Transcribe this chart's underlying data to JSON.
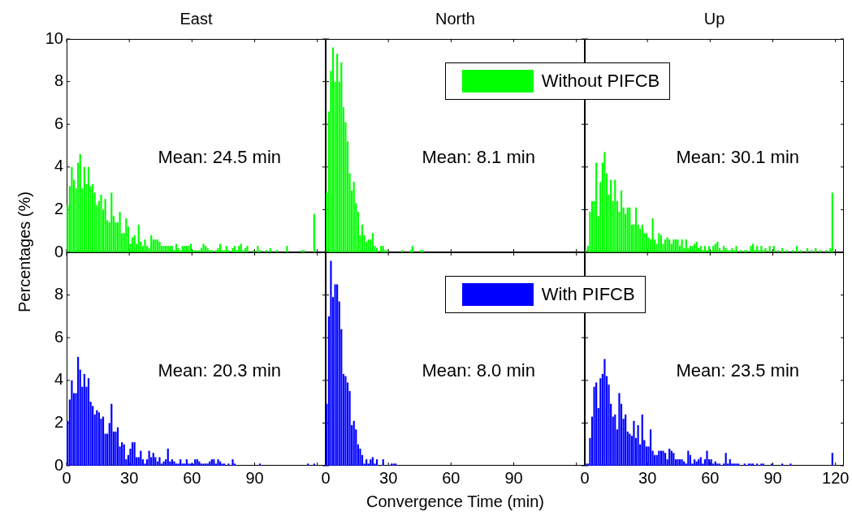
{
  "chart_data": [
    {
      "type": "histogram",
      "title": "East",
      "ylabel": "Percentages (%)",
      "color": "#00ff00",
      "bins": [
        0,
        1,
        2,
        3,
        4,
        5,
        6,
        7,
        8,
        9,
        10,
        11,
        12,
        13,
        14,
        15,
        16,
        17,
        18,
        19,
        20,
        21,
        22,
        23,
        24,
        25,
        26,
        27,
        28,
        29,
        30,
        31,
        32,
        33,
        34,
        35,
        36,
        37,
        38,
        39,
        40,
        41,
        42,
        43,
        44,
        45,
        46,
        47,
        48,
        49,
        50,
        51,
        52,
        53,
        54,
        55,
        56,
        57,
        58,
        59,
        60,
        61,
        62,
        63,
        64,
        65,
        66,
        67,
        68,
        69,
        70,
        71,
        72,
        73,
        74,
        75,
        76,
        77,
        78,
        79,
        80,
        81,
        82,
        83,
        84,
        85,
        86,
        87,
        88,
        89,
        90,
        91,
        92,
        93,
        94,
        95,
        96,
        97,
        98,
        99,
        100,
        101,
        102,
        103,
        104,
        105,
        106,
        107,
        108,
        109,
        110,
        111,
        112,
        113,
        114,
        115,
        116,
        117,
        118,
        119,
        120
      ],
      "values": [
        2.2,
        3.1,
        4.0,
        3.4,
        3.0,
        4.2,
        4.6,
        3.0,
        4.0,
        3.2,
        4.0,
        3.1,
        3.2,
        2.8,
        2.2,
        2.4,
        2.7,
        2.0,
        2.5,
        1.5,
        1.4,
        2.8,
        1.7,
        1.4,
        1.4,
        1.9,
        0.9,
        0.9,
        1.6,
        1.2,
        0.4,
        0.7,
        0.8,
        0.4,
        1.3,
        0.5,
        0.3,
        0.6,
        0.3,
        0.2,
        0.8,
        0.6,
        0.6,
        0.6,
        0.5,
        0.3,
        0.3,
        0.3,
        0.3,
        0.3,
        0.3,
        0.1,
        0.4,
        0.2,
        0.1,
        0.3,
        0.3,
        0.3,
        0.3,
        0.4,
        0.1,
        0.1,
        0.1,
        0.1,
        0.2,
        0.4,
        0.3,
        0.2,
        0.1,
        0.1,
        0,
        0.1,
        0.2,
        0.4,
        0.1,
        0.1,
        0.3,
        0.1,
        0,
        0.2,
        0.3,
        0.1,
        0.3,
        0.4,
        0.1,
        0.2,
        0.3,
        0,
        0,
        0.1,
        0,
        0.3,
        0.1,
        0,
        0,
        0.1,
        0,
        0.2,
        0,
        0,
        0.1,
        0,
        0,
        0,
        0,
        0.3,
        0,
        0,
        0,
        0,
        0,
        0,
        0.1,
        0.1,
        0,
        0,
        0,
        0,
        1.8,
        0
      ],
      "xlim": [
        0,
        124
      ],
      "xticks": [
        0,
        30,
        60,
        90,
        120
      ],
      "ylim": [
        0,
        10
      ],
      "yticks": [
        0,
        2,
        4,
        6,
        8,
        10
      ],
      "tick_labels": "y",
      "annotations": [
        "Mean: 24.5 min"
      ]
    },
    {
      "type": "histogram",
      "title": "North",
      "legend": "top right",
      "bins": [
        0,
        1,
        2,
        3,
        4,
        5,
        6,
        7,
        8,
        9,
        10,
        11,
        12,
        13,
        14,
        15,
        16,
        17,
        18,
        19,
        20,
        21,
        22,
        23,
        24,
        25,
        26,
        27,
        28,
        29,
        30,
        31,
        32,
        33,
        34,
        35,
        36,
        37,
        38,
        39,
        40,
        41,
        42,
        43,
        44,
        45,
        46,
        47,
        48,
        49,
        50,
        51,
        52,
        53,
        54,
        55,
        56,
        57,
        58,
        59,
        60,
        61,
        62,
        63,
        64,
        65,
        66,
        67,
        68,
        69,
        70,
        71,
        72,
        73,
        74,
        75,
        76,
        77,
        78,
        79,
        80,
        81,
        82,
        83,
        84,
        85,
        86,
        87,
        88,
        89,
        90,
        91,
        92,
        93,
        94,
        95,
        96,
        97,
        98,
        99,
        100,
        101,
        102,
        103,
        104,
        105,
        106,
        107,
        108,
        109,
        110,
        111,
        112,
        113,
        114,
        115,
        116,
        117,
        118,
        119,
        120
      ],
      "series": [
        {
          "name": "Without PIFCB",
          "color": "#00ff00",
          "values": [
            2.8,
            6.6,
            8.5,
            9.6,
            8.0,
            9.3,
            8.0,
            8.9,
            6.8,
            6.1,
            5.2,
            3.7,
            2.9,
            3.3,
            2.3,
            1.9,
            0.8,
            1.3,
            0.8,
            0.5,
            0.6,
            0.6,
            0.9,
            0.3,
            0.2,
            0,
            0.3,
            0.3,
            0.1,
            0.1,
            0,
            0,
            0,
            0,
            0,
            0,
            0.1,
            0,
            0,
            0,
            0.1,
            0.3,
            0,
            0,
            0,
            0.1,
            0.1,
            0,
            0,
            0,
            0,
            0,
            0,
            0,
            0,
            0,
            0,
            0,
            0,
            0,
            0,
            0,
            0,
            0,
            0,
            0,
            0,
            0,
            0,
            0,
            0,
            0,
            0,
            0,
            0,
            0,
            0,
            0,
            0,
            0,
            0,
            0,
            0,
            0,
            0,
            0,
            0,
            0,
            0,
            0,
            0,
            0,
            0,
            0,
            0,
            0,
            0,
            0,
            0,
            0,
            0,
            0,
            0,
            0,
            0,
            0,
            0,
            0,
            0,
            0,
            0,
            0,
            0,
            0,
            0,
            0,
            0,
            0,
            0,
            0
          ]
        }
      ],
      "xlim": [
        0,
        124
      ],
      "xticks": [
        0,
        30,
        60,
        90,
        120
      ],
      "ylim": [
        0,
        10
      ],
      "yticks": [
        0,
        2,
        4,
        6,
        8,
        10
      ],
      "tick_labels": false,
      "annotations": [
        "Mean: 8.1 min"
      ]
    },
    {
      "type": "histogram",
      "title": "Up",
      "color": "#00ff00",
      "bins": [
        0,
        1,
        2,
        3,
        4,
        5,
        6,
        7,
        8,
        9,
        10,
        11,
        12,
        13,
        14,
        15,
        16,
        17,
        18,
        19,
        20,
        21,
        22,
        23,
        24,
        25,
        26,
        27,
        28,
        29,
        30,
        31,
        32,
        33,
        34,
        35,
        36,
        37,
        38,
        39,
        40,
        41,
        42,
        43,
        44,
        45,
        46,
        47,
        48,
        49,
        50,
        51,
        52,
        53,
        54,
        55,
        56,
        57,
        58,
        59,
        60,
        61,
        62,
        63,
        64,
        65,
        66,
        67,
        68,
        69,
        70,
        71,
        72,
        73,
        74,
        75,
        76,
        77,
        78,
        79,
        80,
        81,
        82,
        83,
        84,
        85,
        86,
        87,
        88,
        89,
        90,
        91,
        92,
        93,
        94,
        95,
        96,
        97,
        98,
        99,
        100,
        101,
        102,
        103,
        104,
        105,
        106,
        107,
        108,
        109,
        110,
        111,
        112,
        113,
        114,
        115,
        116,
        117,
        118,
        119,
        120
      ],
      "values": [
        0.1,
        0.3,
        1.9,
        2.4,
        2.4,
        4.2,
        1.7,
        3.3,
        4.2,
        4.7,
        3.7,
        2.7,
        3.4,
        2.4,
        3.4,
        2.4,
        1.9,
        2.9,
        2.1,
        1.8,
        2.1,
        2.1,
        1.3,
        1.3,
        2.1,
        1.3,
        1.1,
        1.3,
        0.9,
        0.9,
        0.7,
        0.6,
        1.6,
        0.6,
        0.4,
        0.9,
        0.8,
        0.4,
        0.6,
        0.7,
        0.6,
        0.4,
        0.6,
        0.6,
        0.6,
        0.3,
        0.6,
        0.2,
        0.6,
        0.2,
        0.3,
        0.3,
        0.4,
        0.5,
        0.2,
        0.3,
        0.1,
        0.3,
        0.1,
        0.3,
        0.1,
        0.3,
        0.4,
        0.5,
        0.2,
        0.1,
        0.3,
        0.2,
        0.1,
        0.1,
        0.2,
        0.1,
        0.3,
        0,
        0.1,
        0,
        0.1,
        0.1,
        0,
        0.3,
        0.4,
        0.1,
        0.3,
        0.1,
        0.3,
        0.1,
        0.2,
        0,
        0.3,
        0,
        0.3,
        0,
        0.1,
        0,
        0.2,
        0,
        0.1,
        0,
        0,
        0.1,
        0,
        0.3,
        0,
        0.1,
        0,
        0,
        0.2,
        0,
        0.1,
        0,
        0.2,
        0,
        0.1,
        0,
        0,
        0.1,
        0,
        0.2,
        2.8,
        0
      ],
      "xlim": [
        0,
        124
      ],
      "xticks": [
        0,
        30,
        60,
        90,
        120
      ],
      "ylim": [
        0,
        10
      ],
      "yticks": [
        0,
        2,
        4,
        6,
        8,
        10
      ],
      "tick_labels": false,
      "annotations": [
        "Mean: 30.1 min"
      ]
    },
    {
      "type": "histogram",
      "color": "#0000ff",
      "bins": [
        0,
        1,
        2,
        3,
        4,
        5,
        6,
        7,
        8,
        9,
        10,
        11,
        12,
        13,
        14,
        15,
        16,
        17,
        18,
        19,
        20,
        21,
        22,
        23,
        24,
        25,
        26,
        27,
        28,
        29,
        30,
        31,
        32,
        33,
        34,
        35,
        36,
        37,
        38,
        39,
        40,
        41,
        42,
        43,
        44,
        45,
        46,
        47,
        48,
        49,
        50,
        51,
        52,
        53,
        54,
        55,
        56,
        57,
        58,
        59,
        60,
        61,
        62,
        63,
        64,
        65,
        66,
        67,
        68,
        69,
        70,
        71,
        72,
        73,
        74,
        75,
        76,
        77,
        78,
        79,
        80,
        81,
        82,
        83,
        84,
        85,
        86,
        87,
        88,
        89,
        90,
        91,
        92,
        93,
        94,
        95,
        96,
        97,
        98,
        99,
        100,
        101,
        102,
        103,
        104,
        105,
        106,
        107,
        108,
        109,
        110,
        111,
        112,
        113,
        114,
        115,
        116,
        117,
        118,
        119,
        120
      ],
      "values": [
        2.1,
        3.1,
        4.0,
        3.4,
        3.4,
        5.1,
        4.5,
        3.7,
        4.3,
        3.7,
        4.1,
        3.0,
        2.8,
        2.4,
        2.6,
        2.5,
        2.2,
        2.3,
        1.5,
        1.5,
        2.0,
        2.9,
        1.6,
        1.6,
        1.8,
        0.9,
        1.1,
        1.0,
        0.3,
        0.5,
        0.8,
        1.1,
        1.1,
        0.4,
        0.4,
        0.7,
        0.3,
        0.1,
        0.3,
        0.7,
        0.4,
        0.6,
        0.4,
        0.2,
        0.4,
        0.1,
        0.2,
        0.3,
        0.8,
        0.2,
        0.3,
        0.2,
        0.1,
        0.1,
        0.3,
        0.1,
        0.1,
        0.3,
        0.1,
        0.1,
        0.1,
        0.3,
        0.3,
        0.2,
        0.1,
        0.1,
        0.1,
        0.1,
        0.2,
        0.3,
        0.3,
        0.1,
        0.3,
        0.2,
        0.1,
        0.1,
        0,
        0.1,
        0,
        0.3,
        0.1,
        0,
        0,
        0,
        0,
        0,
        0,
        0,
        0,
        0,
        0,
        0,
        0.1,
        0,
        0,
        0,
        0,
        0,
        0,
        0,
        0,
        0,
        0,
        0,
        0,
        0,
        0,
        0,
        0,
        0,
        0,
        0,
        0,
        0,
        0,
        0.1,
        0,
        0,
        0.1,
        0
      ],
      "xlim": [
        0,
        124
      ],
      "xticks": [
        0,
        30,
        60,
        90,
        {
          "value": 120,
          "label": null
        }
      ],
      "ylim": [
        0,
        10
      ],
      "yticks": [
        0,
        2,
        4,
        6,
        8,
        {
          "value": 10,
          "label": null
        }
      ],
      "annotations": [
        "Mean: 20.3 min"
      ]
    },
    {
      "type": "histogram",
      "xlabel": "Convergence Time (min)",
      "legend": "top right",
      "bins": [
        0,
        1,
        2,
        3,
        4,
        5,
        6,
        7,
        8,
        9,
        10,
        11,
        12,
        13,
        14,
        15,
        16,
        17,
        18,
        19,
        20,
        21,
        22,
        23,
        24,
        25,
        26,
        27,
        28,
        29,
        30,
        31,
        32,
        33,
        34,
        35,
        36,
        37,
        38,
        39,
        40,
        41,
        42,
        43,
        44,
        45,
        46,
        47,
        48,
        49,
        50,
        51,
        52,
        53,
        54,
        55,
        56,
        57,
        58,
        59,
        60,
        61,
        62,
        63,
        64,
        65,
        66,
        67,
        68,
        69,
        70,
        71,
        72,
        73,
        74,
        75,
        76,
        77,
        78,
        79,
        80,
        81,
        82,
        83,
        84,
        85,
        86,
        87,
        88,
        89,
        90,
        91,
        92,
        93,
        94,
        95,
        96,
        97,
        98,
        99,
        100,
        101,
        102,
        103,
        104,
        105,
        106,
        107,
        108,
        109,
        110,
        111,
        112,
        113,
        114,
        115,
        116,
        117,
        118,
        119,
        120
      ],
      "series": [
        {
          "name": "With PIFCB",
          "color": "#0000ff",
          "values": [
            2.9,
            7.0,
            9.6,
            7.9,
            8.5,
            8.5,
            7.7,
            6.4,
            4.3,
            4.2,
            3.9,
            3.5,
            1.9,
            2.1,
            1.7,
            1.0,
            0.8,
            0.5,
            0.1,
            0.3,
            0.1,
            0.3,
            0.4,
            0.1,
            0.3,
            0,
            0,
            0.3,
            0,
            0,
            0,
            0.1,
            0.1,
            0.1,
            0,
            0,
            0,
            0,
            0,
            0,
            0,
            0,
            0,
            0,
            0,
            0,
            0,
            0,
            0,
            0,
            0,
            0,
            0,
            0,
            0,
            0,
            0,
            0,
            0,
            0,
            0,
            0,
            0,
            0,
            0,
            0,
            0,
            0,
            0,
            0,
            0,
            0,
            0,
            0,
            0,
            0,
            0,
            0,
            0,
            0,
            0,
            0,
            0,
            0,
            0,
            0,
            0,
            0,
            0,
            0,
            0,
            0,
            0,
            0,
            0,
            0,
            0,
            0,
            0,
            0,
            0,
            0,
            0,
            0,
            0,
            0,
            0,
            0,
            0,
            0,
            0,
            0,
            0,
            0,
            0,
            0,
            0,
            0,
            0,
            0
          ]
        }
      ],
      "xlim": [
        0,
        124
      ],
      "xticks": [
        0,
        30,
        60,
        90,
        {
          "value": 120,
          "label": null
        }
      ],
      "ylim": [
        0,
        10
      ],
      "yticks": [
        0,
        2,
        4,
        6,
        8,
        10
      ],
      "tick_labels": "x",
      "annotations": [
        "Mean: 8.0 min"
      ]
    },
    {
      "type": "histogram",
      "color": "#0000ff",
      "bins": [
        0,
        1,
        2,
        3,
        4,
        5,
        6,
        7,
        8,
        9,
        10,
        11,
        12,
        13,
        14,
        15,
        16,
        17,
        18,
        19,
        20,
        21,
        22,
        23,
        24,
        25,
        26,
        27,
        28,
        29,
        30,
        31,
        32,
        33,
        34,
        35,
        36,
        37,
        38,
        39,
        40,
        41,
        42,
        43,
        44,
        45,
        46,
        47,
        48,
        49,
        50,
        51,
        52,
        53,
        54,
        55,
        56,
        57,
        58,
        59,
        60,
        61,
        62,
        63,
        64,
        65,
        66,
        67,
        68,
        69,
        70,
        71,
        72,
        73,
        74,
        75,
        76,
        77,
        78,
        79,
        80,
        81,
        82,
        83,
        84,
        85,
        86,
        87,
        88,
        89,
        90,
        91,
        92,
        93,
        94,
        95,
        96,
        97,
        98,
        99,
        100,
        101,
        102,
        103,
        104,
        105,
        106,
        107,
        108,
        109,
        110,
        111,
        112,
        113,
        114,
        115,
        116,
        117,
        118,
        119,
        120
      ],
      "values": [
        0.1,
        0.1,
        1.3,
        2.3,
        3.7,
        3.9,
        2.7,
        4.1,
        4.3,
        5.0,
        4.2,
        3.8,
        2.9,
        2.3,
        2.4,
        1.7,
        3.4,
        2.9,
        2.2,
        2.4,
        1.6,
        1.5,
        1.4,
        2.1,
        1.3,
        1.9,
        1.0,
        2.4,
        1.2,
        0.9,
        0.9,
        1.7,
        0.7,
        0.5,
        0.5,
        0.7,
        0.7,
        0.7,
        0.6,
        0.3,
        0.8,
        0.7,
        0.6,
        0.3,
        0.3,
        0.3,
        0.3,
        0.2,
        0.1,
        0.7,
        0.5,
        0.1,
        0.3,
        0.2,
        0.3,
        0.4,
        0.1,
        0.3,
        0.7,
        0.3,
        0.3,
        0.1,
        0.2,
        0.1,
        0.1,
        0,
        0.1,
        0.6,
        0.1,
        0.3,
        0.1,
        0.1,
        0.1,
        0.1,
        0,
        0,
        0.1,
        0,
        0.1,
        0.1,
        0.1,
        0,
        0.1,
        0,
        0.1,
        0.1,
        0,
        0,
        0,
        0.1,
        0,
        0,
        0,
        0,
        0.1,
        0,
        0,
        0,
        0.1,
        0,
        0,
        0,
        0,
        0,
        0,
        0,
        0,
        0,
        0,
        0,
        0,
        0,
        0,
        0,
        0,
        0,
        0,
        0,
        0.6,
        0
      ],
      "xlim": [
        0,
        124
      ],
      "xticks": [
        0,
        30,
        60,
        90,
        120
      ],
      "ylim": [
        0,
        10
      ],
      "yticks": [
        0,
        2,
        4,
        6,
        8,
        10
      ],
      "tick_labels": "x",
      "annotations": [
        "Mean: 23.5 min"
      ]
    }
  ]
}
